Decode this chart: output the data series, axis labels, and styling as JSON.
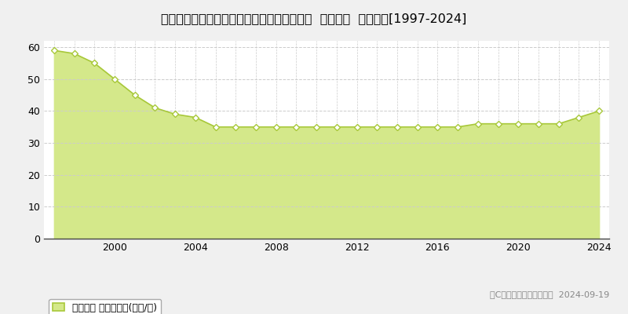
{
  "title": "千葉県佐倉市ユーカリが丘２丁目２３番１４  基準地価  地価推移[1997-2024]",
  "years": [
    1997,
    1998,
    1999,
    2000,
    2001,
    2002,
    2003,
    2004,
    2005,
    2006,
    2007,
    2008,
    2009,
    2010,
    2011,
    2012,
    2013,
    2014,
    2015,
    2016,
    2017,
    2018,
    2019,
    2020,
    2021,
    2022,
    2023,
    2024
  ],
  "values": [
    59,
    58,
    55,
    50,
    45,
    41,
    39,
    38,
    35,
    35,
    35,
    35,
    35,
    35,
    35,
    35,
    35,
    35,
    35,
    35,
    35,
    36,
    36,
    36,
    36,
    36,
    38,
    40
  ],
  "line_color": "#a8c83a",
  "fill_color": "#d4e88a",
  "marker_facecolor": "#ffffff",
  "marker_edgecolor": "#a8c83a",
  "background_color": "#f0f0f0",
  "plot_bg_color": "#ffffff",
  "grid_color_h": "#cccccc",
  "grid_color_v": "#cccccc",
  "ylim": [
    0,
    62
  ],
  "yticks": [
    0,
    10,
    20,
    30,
    40,
    50,
    60
  ],
  "xtick_visible": [
    2000,
    2004,
    2008,
    2012,
    2016,
    2020,
    2024
  ],
  "xlim": [
    1996.5,
    2024.5
  ],
  "legend_label": "基準地価 平均坪単価(万円/坪)",
  "copyright_text": "（C）土地価格ドットコム  2024-09-19",
  "title_fontsize": 11.5,
  "legend_fontsize": 9,
  "tick_fontsize": 9,
  "copyright_fontsize": 8
}
